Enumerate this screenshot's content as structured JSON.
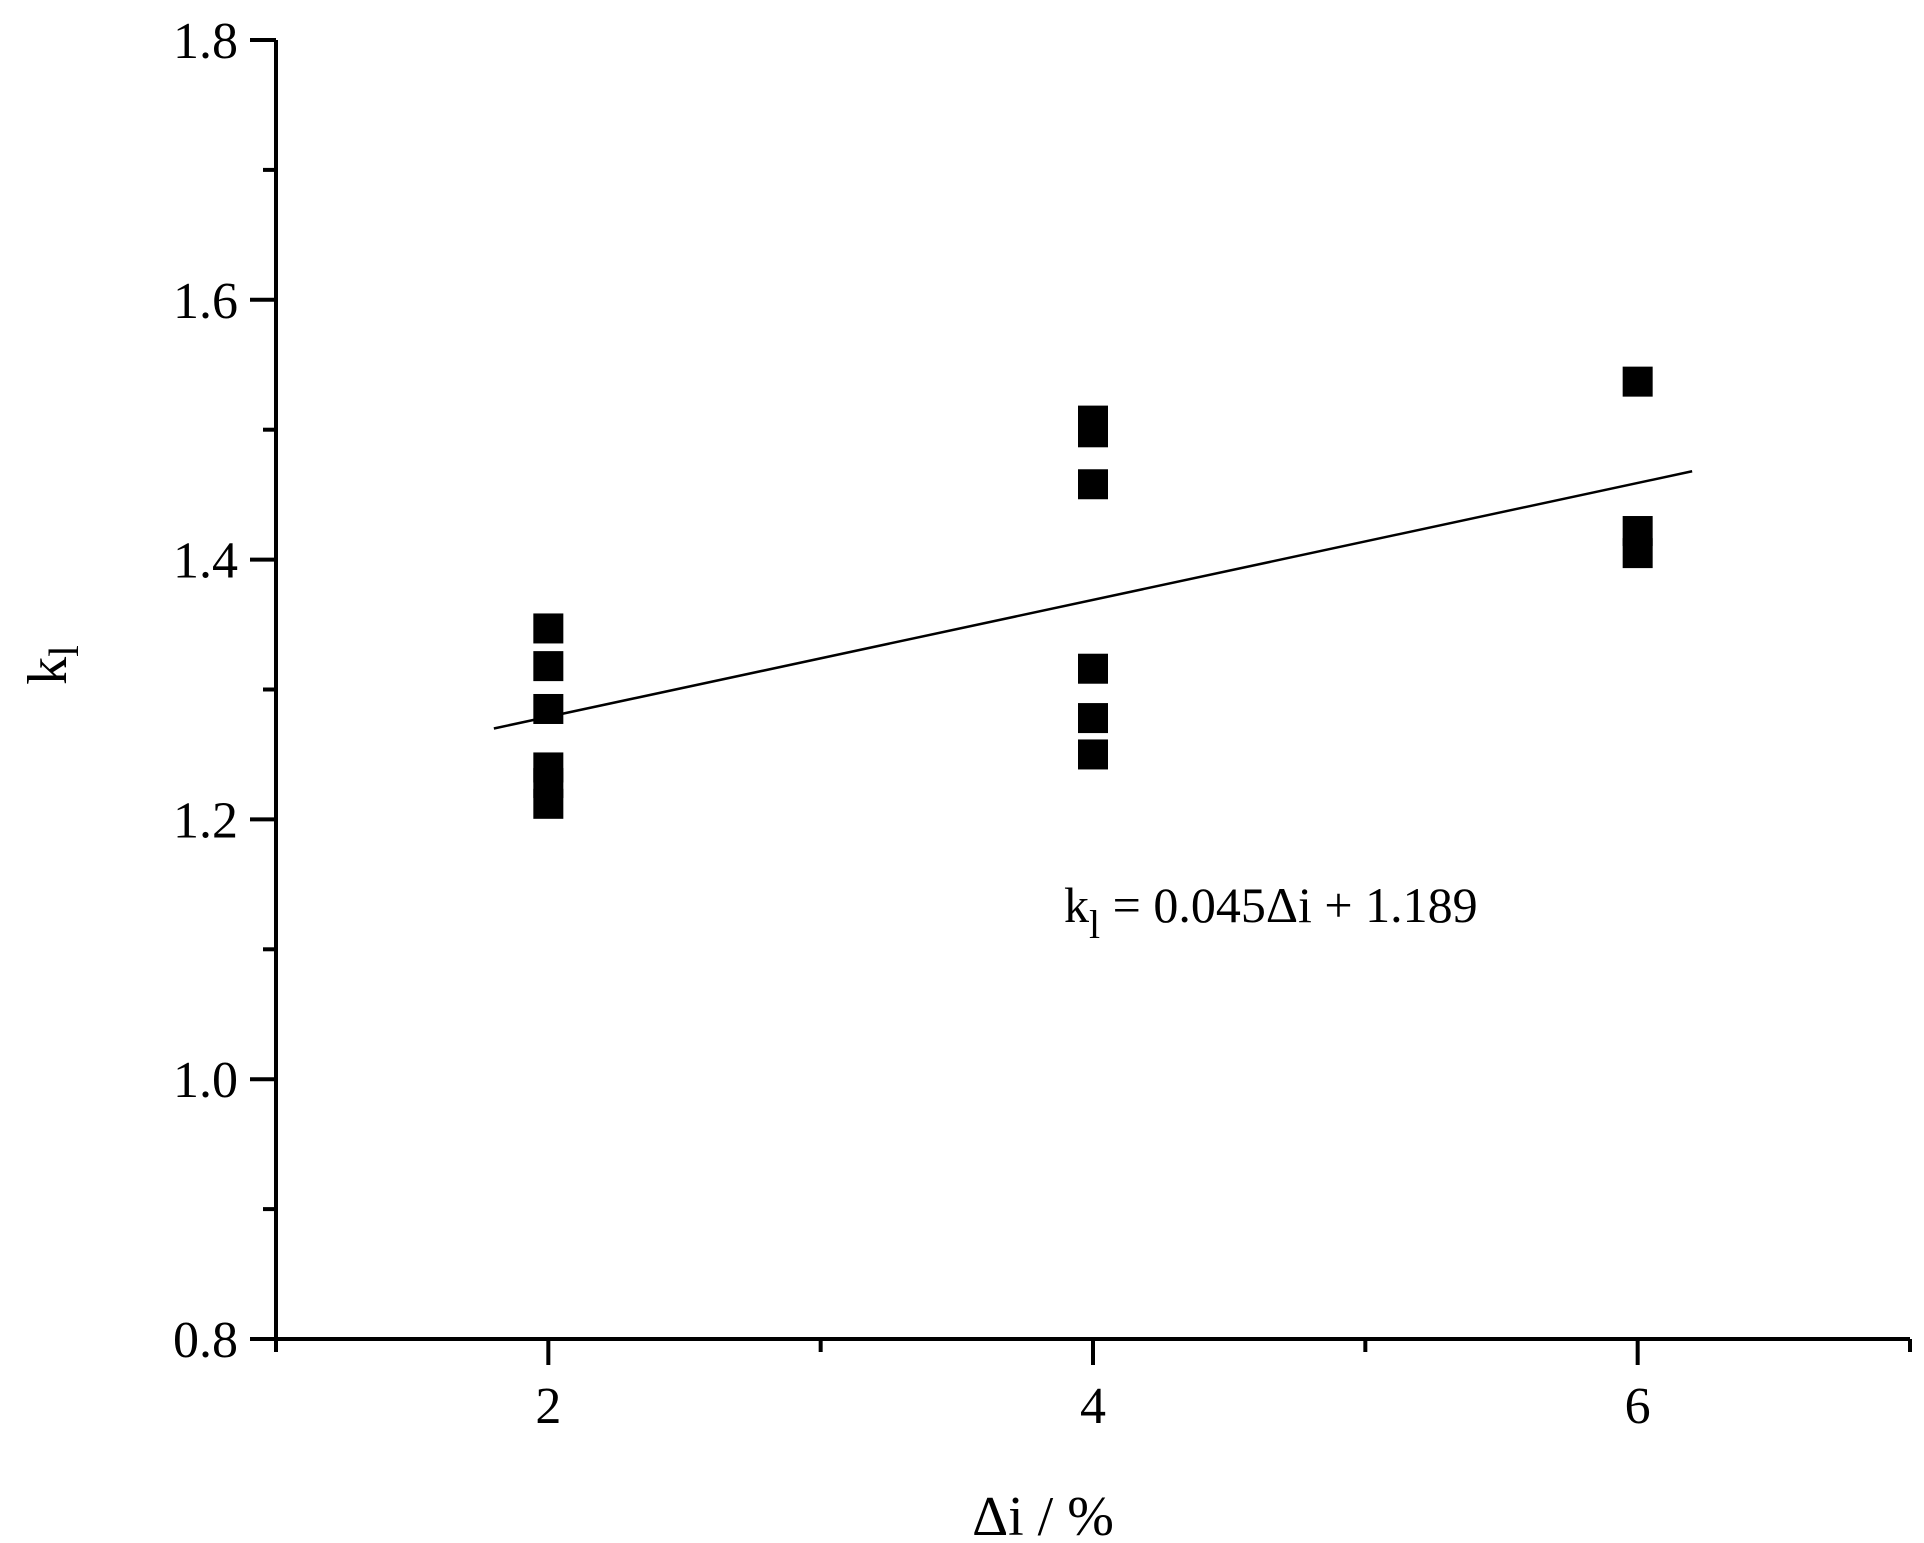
{
  "chart_data": {
    "type": "scatter",
    "title": "",
    "xlabel": "Δi / %",
    "ylabel_main": "k",
    "ylabel_sub": "l",
    "xlim": [
      1,
      7
    ],
    "ylim": [
      0.8,
      1.8
    ],
    "x_ticks_labeled": [
      2,
      4,
      6
    ],
    "x_tick_labels": [
      "2",
      "4",
      "6"
    ],
    "x_minor_ticks": [
      1,
      3,
      5,
      7
    ],
    "y_ticks_labeled": [
      0.8,
      1.0,
      1.2,
      1.4,
      1.6,
      1.8
    ],
    "y_tick_labels": [
      "0.8",
      "1.0",
      "1.2",
      "1.4",
      "1.6",
      "1.8"
    ],
    "y_minor_ticks": [
      0.9,
      1.1,
      1.3,
      1.5,
      1.7
    ],
    "grid": false,
    "series": [
      {
        "marker": "square",
        "color": "#000000",
        "points": [
          [
            2,
            1.347
          ],
          [
            2,
            1.318
          ],
          [
            2,
            1.285
          ],
          [
            2,
            1.24
          ],
          [
            2,
            1.228
          ],
          [
            2,
            1.212
          ],
          [
            4,
            1.507
          ],
          [
            4,
            1.498
          ],
          [
            4,
            1.458
          ],
          [
            4,
            1.316
          ],
          [
            4,
            1.278
          ],
          [
            4,
            1.25
          ],
          [
            6,
            1.537
          ],
          [
            6,
            1.422
          ],
          [
            6,
            1.405
          ]
        ]
      }
    ],
    "fit_line": {
      "slope": 0.045,
      "intercept": 1.189,
      "x_range": [
        1.8,
        6.2
      ],
      "color": "#000000"
    },
    "annotation": {
      "main": "k",
      "sub": "l",
      "rest": " = 0.045Δi + 1.189"
    }
  }
}
